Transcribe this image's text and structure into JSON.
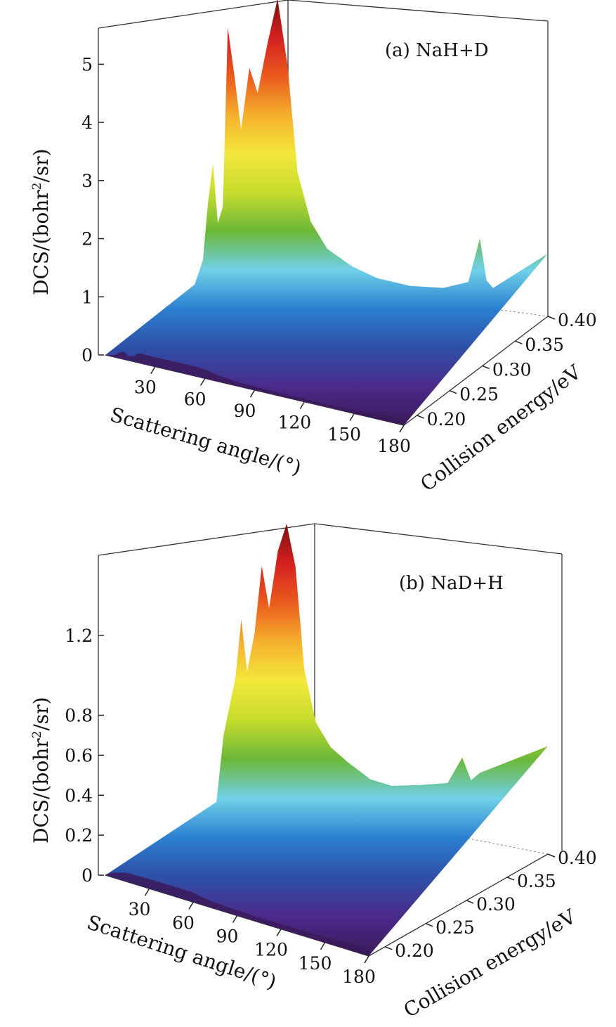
{
  "colors": {
    "surface_stops": [
      "#3b1a5a",
      "#4b2a8a",
      "#2e4fa6",
      "#2b7fd0",
      "#6fd0e8",
      "#6cb838",
      "#c4dc2c",
      "#f2e83a",
      "#f5b02c",
      "#ea5a1e",
      "#d42020",
      "#7a1010"
    ]
  },
  "chart_data": [
    {
      "panel": "a",
      "type": "surface",
      "title": "(a) NaH+D",
      "zlabel_main": "DCS/(bohr",
      "zlabel_sup": "2",
      "zlabel_tail": "/sr)",
      "xlabel": "Scattering angle/(°)",
      "ylabel": "Collision energy/eV",
      "z_ticks": [
        0,
        1,
        2,
        3,
        4,
        5
      ],
      "z_tick_labels": [
        "0",
        "1",
        "2",
        "3",
        "4",
        "5"
      ],
      "zlim": [
        0,
        5.5
      ],
      "x_ticks": [
        30,
        60,
        90,
        120,
        150,
        180
      ],
      "x_tick_labels": [
        "30",
        "60",
        "90",
        "120",
        "150",
        "180"
      ],
      "xlim": [
        0,
        180
      ],
      "y_ticks": [
        0.2,
        0.25,
        0.3,
        0.35,
        0.4
      ],
      "y_tick_labels": [
        "0.20",
        "0.25",
        "0.30",
        "0.35",
        "0.40"
      ],
      "ylim": [
        0.18,
        0.4
      ],
      "profile": {
        "angles": [
          0,
          5,
          8,
          11,
          14,
          17,
          20,
          24,
          28,
          33,
          38,
          44,
          50,
          56,
          62,
          70,
          80,
          95,
          110,
          130,
          150,
          165,
          172,
          176,
          180
        ],
        "max_dcs": [
          0.05,
          0.5,
          1.5,
          2.2,
          1.2,
          1.5,
          4.6,
          3.8,
          2.9,
          4.0,
          3.6,
          4.5,
          5.3,
          4.2,
          2.4,
          1.6,
          1.2,
          1.0,
          0.9,
          0.9,
          1.0,
          1.2,
          2.0,
          1.3,
          1.2
        ]
      }
    },
    {
      "panel": "b",
      "type": "surface",
      "title": "(b) NaD+H",
      "zlabel_main": "DCS/(bohr",
      "zlabel_sup": "2",
      "zlabel_tail": "/sr)",
      "xlabel": "Scattering angle/(°)",
      "ylabel": "Collision energy/eV",
      "z_ticks": [
        0,
        0.2,
        0.4,
        0.6,
        0.8,
        1.2
      ],
      "z_tick_labels": [
        "0",
        "0.2",
        "0.4",
        "0.6",
        "0.8",
        "1.2"
      ],
      "zlim": [
        0,
        1.6
      ],
      "x_ticks": [
        30,
        60,
        90,
        120,
        150,
        180
      ],
      "x_tick_labels": [
        "30",
        "60",
        "90",
        "120",
        "150",
        "180"
      ],
      "xlim": [
        0,
        180
      ],
      "y_ticks": [
        0.2,
        0.25,
        0.3,
        0.35,
        0.4
      ],
      "y_tick_labels": [
        "0.20",
        "0.25",
        "0.30",
        "0.35",
        "0.40"
      ],
      "ylim": [
        0.18,
        0.4
      ],
      "profile": {
        "angles": [
          0,
          5,
          9,
          13,
          17,
          21,
          26,
          31,
          36,
          42,
          48,
          54,
          60,
          68,
          78,
          90,
          105,
          120,
          140,
          158,
          168,
          174,
          180
        ],
        "max_dcs": [
          0.05,
          0.4,
          0.55,
          0.7,
          1.0,
          0.75,
          0.95,
          1.3,
          1.1,
          1.4,
          1.55,
          1.35,
          0.85,
          0.6,
          0.5,
          0.45,
          0.4,
          0.4,
          0.45,
          0.5,
          0.65,
          0.55,
          0.6
        ]
      }
    }
  ]
}
